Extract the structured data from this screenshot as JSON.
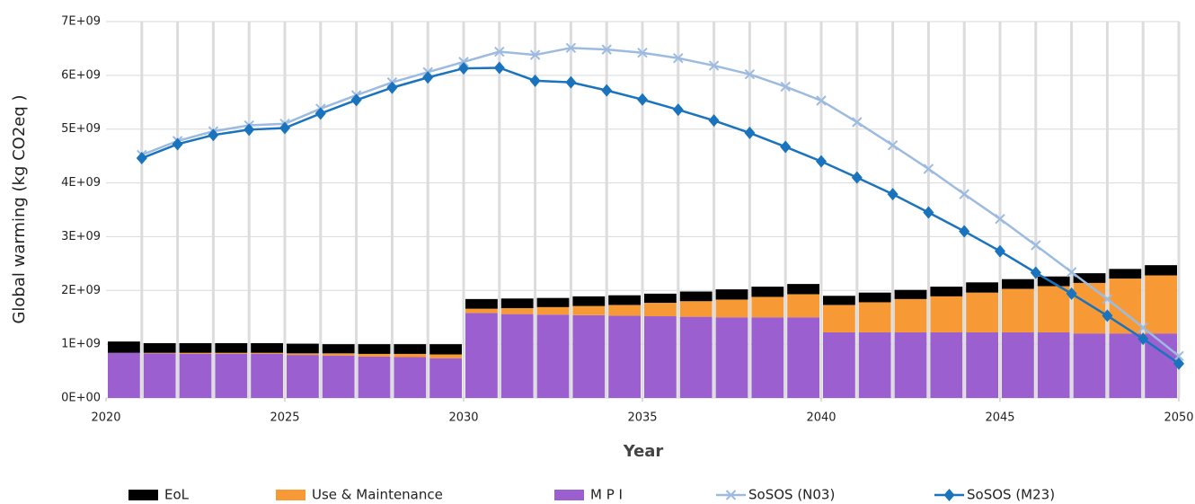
{
  "chart_data": {
    "type": "combo",
    "xlabel": "Year",
    "ylabel": "Global warming (kg CO2eq )",
    "x": [
      2021,
      2022,
      2023,
      2024,
      2025,
      2026,
      2027,
      2028,
      2029,
      2030,
      2031,
      2032,
      2033,
      2034,
      2035,
      2036,
      2037,
      2038,
      2039,
      2040,
      2041,
      2042,
      2043,
      2044,
      2045,
      2046,
      2047,
      2048,
      2049,
      2050
    ],
    "xlim": [
      2020,
      2050
    ],
    "xticks": [
      2020,
      2025,
      2030,
      2035,
      2040,
      2045,
      2050
    ],
    "ylim": [
      0,
      7000000000
    ],
    "yticks": [
      {
        "value": 0,
        "label": "0E+00"
      },
      {
        "value": 1000000000,
        "label": "1E+09"
      },
      {
        "value": 2000000000,
        "label": "2E+09"
      },
      {
        "value": 3000000000,
        "label": "3E+09"
      },
      {
        "value": 4000000000,
        "label": "4E+09"
      },
      {
        "value": 5000000000,
        "label": "5E+09"
      },
      {
        "value": 6000000000,
        "label": "6E+09"
      },
      {
        "value": 7000000000,
        "label": "7E+09"
      }
    ],
    "grid": true,
    "legend": "bottom",
    "series": [
      {
        "name": "M P I",
        "type": "bar",
        "color": "#9b5fcf",
        "values": [
          840000000,
          830000000,
          820000000,
          820000000,
          820000000,
          800000000,
          790000000,
          770000000,
          760000000,
          740000000,
          1580000000,
          1560000000,
          1550000000,
          1540000000,
          1530000000,
          1520000000,
          1510000000,
          1500000000,
          1500000000,
          1500000000,
          1220000000,
          1220000000,
          1220000000,
          1220000000,
          1220000000,
          1220000000,
          1220000000,
          1200000000,
          1200000000,
          1200000000
        ]
      },
      {
        "name": "Use & Maintenance",
        "type": "bar",
        "color": "#f79a36",
        "values": [
          0,
          10000000,
          20000000,
          20000000,
          20000000,
          30000000,
          40000000,
          50000000,
          60000000,
          70000000,
          80000000,
          110000000,
          140000000,
          170000000,
          200000000,
          250000000,
          290000000,
          330000000,
          380000000,
          430000000,
          510000000,
          560000000,
          620000000,
          670000000,
          740000000,
          810000000,
          860000000,
          940000000,
          1020000000,
          1080000000
        ]
      },
      {
        "name": "EoL",
        "type": "bar",
        "color": "#000000",
        "values": [
          210000000,
          180000000,
          180000000,
          180000000,
          180000000,
          180000000,
          170000000,
          180000000,
          180000000,
          190000000,
          180000000,
          180000000,
          170000000,
          180000000,
          180000000,
          170000000,
          180000000,
          190000000,
          190000000,
          190000000,
          170000000,
          180000000,
          170000000,
          180000000,
          190000000,
          180000000,
          180000000,
          180000000,
          180000000,
          190000000
        ]
      },
      {
        "name": "SoSOS (N03)",
        "type": "line",
        "marker": "x",
        "color": "#9dbbe0",
        "values": [
          4520000000,
          4780000000,
          4960000000,
          5070000000,
          5100000000,
          5380000000,
          5630000000,
          5870000000,
          6060000000,
          6250000000,
          6440000000,
          6380000000,
          6510000000,
          6480000000,
          6420000000,
          6320000000,
          6180000000,
          6020000000,
          5790000000,
          5530000000,
          5130000000,
          4700000000,
          4260000000,
          3790000000,
          3330000000,
          2840000000,
          2340000000,
          1840000000,
          1310000000,
          780000000
        ]
      },
      {
        "name": "SoSOS (M23)",
        "type": "line",
        "marker": "diamond",
        "color": "#1a73bd",
        "values": [
          4460000000,
          4720000000,
          4890000000,
          4990000000,
          5020000000,
          5290000000,
          5540000000,
          5770000000,
          5960000000,
          6130000000,
          6140000000,
          5900000000,
          5870000000,
          5720000000,
          5550000000,
          5360000000,
          5160000000,
          4930000000,
          4670000000,
          4400000000,
          4100000000,
          3790000000,
          3450000000,
          3100000000,
          2730000000,
          2330000000,
          1940000000,
          1530000000,
          1100000000,
          640000000
        ]
      }
    ],
    "legend_order": [
      2,
      1,
      0,
      3,
      4
    ]
  }
}
